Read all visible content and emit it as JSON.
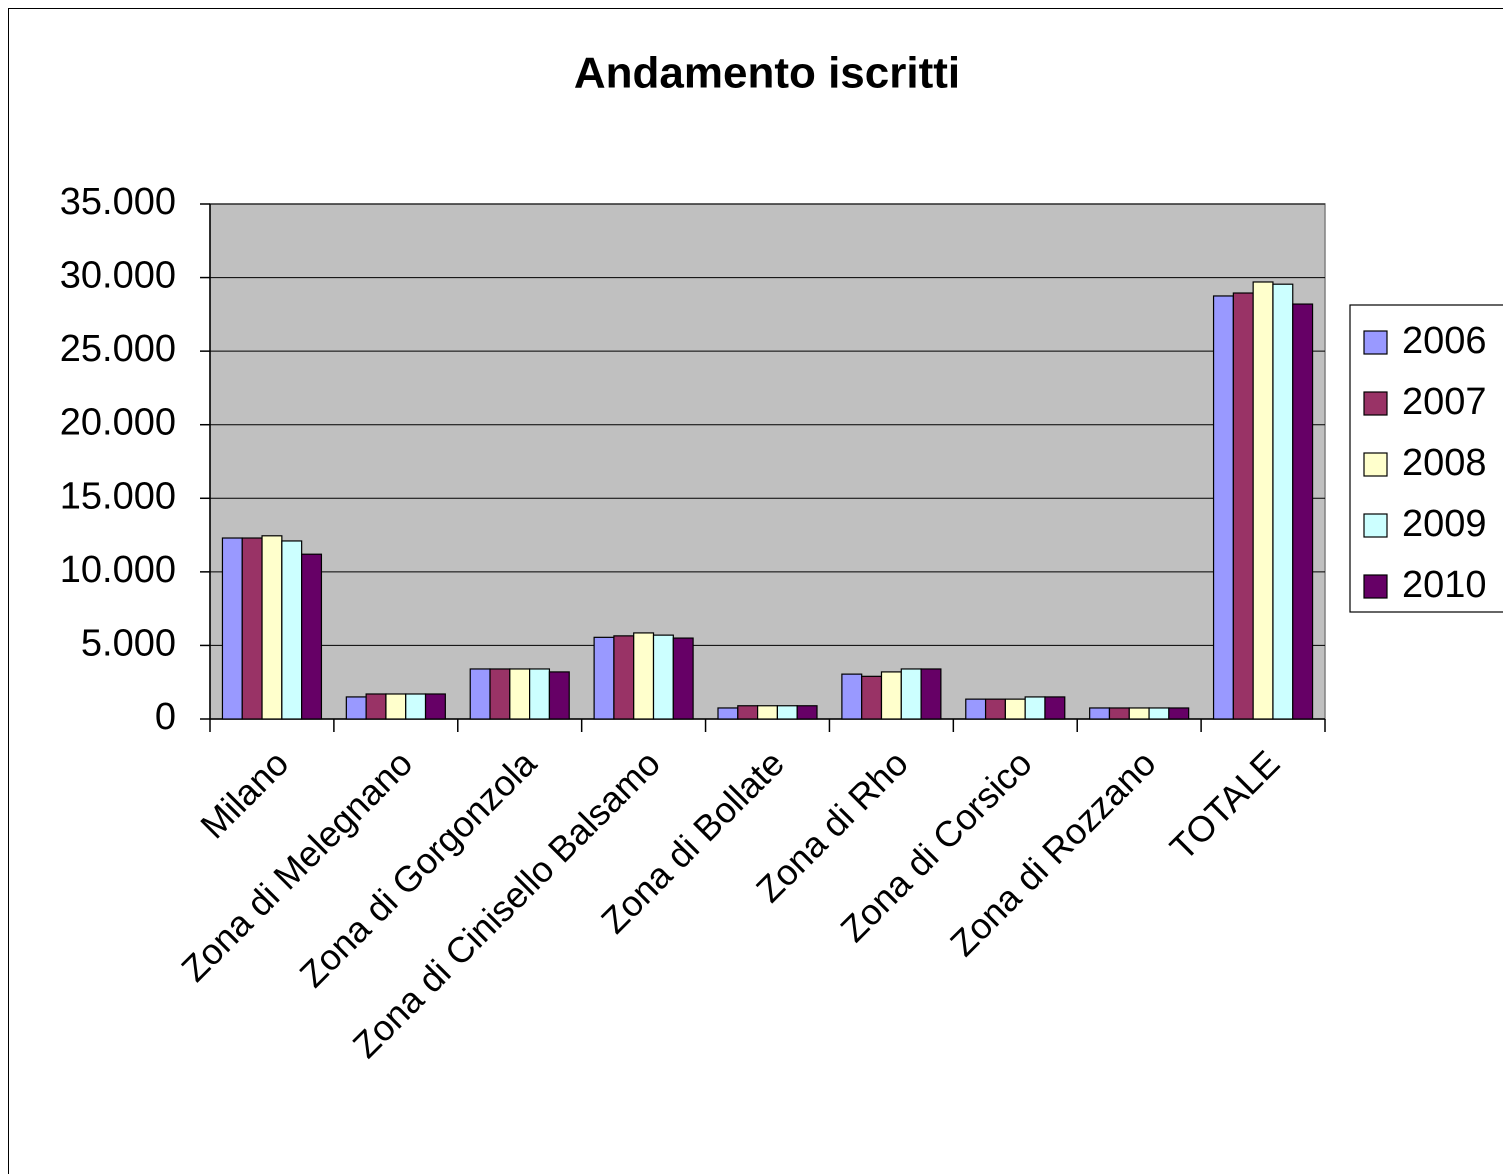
{
  "chart_data": {
    "type": "bar",
    "title": "Andamento iscritti",
    "categories": [
      "Milano",
      "Zona di Melegnano",
      "Zona di Gorgonzola",
      "Zona di Cinisello Balsamo",
      "Zona di Bollate",
      "Zona di Rho",
      "Zona di Corsico",
      "Zona di Rozzano",
      "TOTALE"
    ],
    "series": [
      {
        "name": "2006",
        "color": "#9999ff",
        "values": [
          12300,
          1500,
          3400,
          5550,
          750,
          3050,
          1350,
          750,
          28750
        ]
      },
      {
        "name": "2007",
        "color": "#993366",
        "values": [
          12300,
          1700,
          3400,
          5650,
          900,
          2900,
          1350,
          750,
          28950
        ]
      },
      {
        "name": "2008",
        "color": "#ffffcc",
        "values": [
          12450,
          1700,
          3400,
          5850,
          900,
          3200,
          1350,
          750,
          29700
        ]
      },
      {
        "name": "2009",
        "color": "#ccffff",
        "values": [
          12100,
          1700,
          3400,
          5700,
          900,
          3400,
          1500,
          750,
          29550
        ]
      },
      {
        "name": "2010",
        "color": "#660066",
        "values": [
          11200,
          1700,
          3200,
          5500,
          900,
          3400,
          1500,
          750,
          28200
        ]
      }
    ],
    "ylim": [
      0,
      35000
    ],
    "yticks": [
      0,
      {
        "value": 5000,
        "label": "5.000"
      },
      {
        "value": 10000,
        "label": "10.000"
      },
      {
        "value": 15000,
        "label": "15.000"
      },
      {
        "value": 20000,
        "label": "20.000"
      },
      {
        "value": 25000,
        "label": "25.000"
      },
      {
        "value": 30000,
        "label": "30.000"
      },
      {
        "value": 35000,
        "label": "35.000"
      }
    ],
    "grid": true,
    "plot_background": "#c0c0c0",
    "legend": "right"
  }
}
